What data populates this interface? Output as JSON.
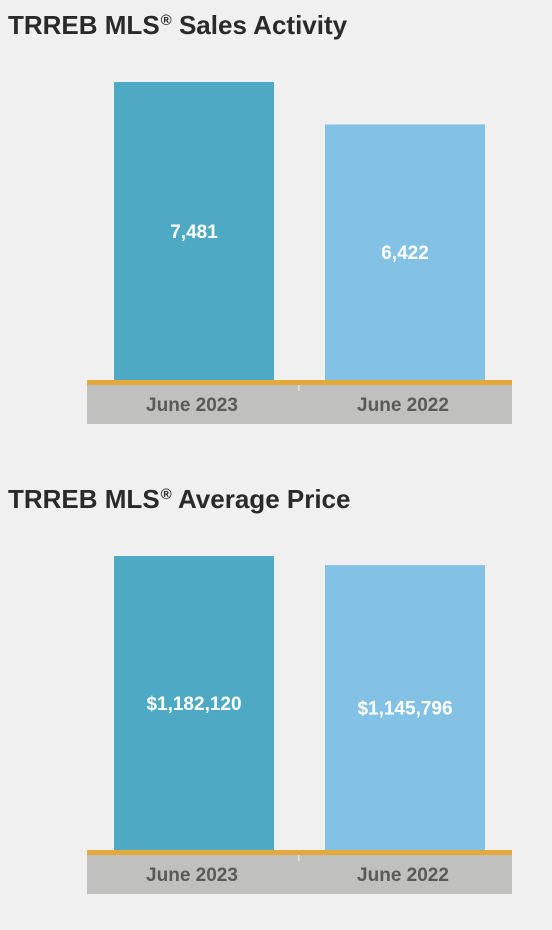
{
  "colors": {
    "bar_2023": "#4eaac4",
    "bar_2022": "#83c2e4",
    "axis_band": "#c0c0bf",
    "baseline": "#e4a93c",
    "tick_divider": "#e2e2e2"
  },
  "chart_data": [
    {
      "type": "bar",
      "title": "TRREB MLS",
      "title_mark": "®",
      "title_suffix": "Sales Activity",
      "categories": [
        "June 2023",
        "June 2022"
      ],
      "values": [
        7481,
        6422
      ],
      "value_labels": [
        "7,481",
        "6,422"
      ],
      "ylim": [
        0,
        7481
      ],
      "grid": false,
      "legend": "none"
    },
    {
      "type": "bar",
      "title": "TRREB MLS",
      "title_mark": "®",
      "title_suffix": "Average Price",
      "categories": [
        "June 2023",
        "June 2022"
      ],
      "values": [
        1182120,
        1145796
      ],
      "value_labels": [
        "$1,182,120",
        "$1,145,796"
      ],
      "ylim": [
        0,
        1182120
      ],
      "grid": false,
      "legend": "none"
    }
  ]
}
